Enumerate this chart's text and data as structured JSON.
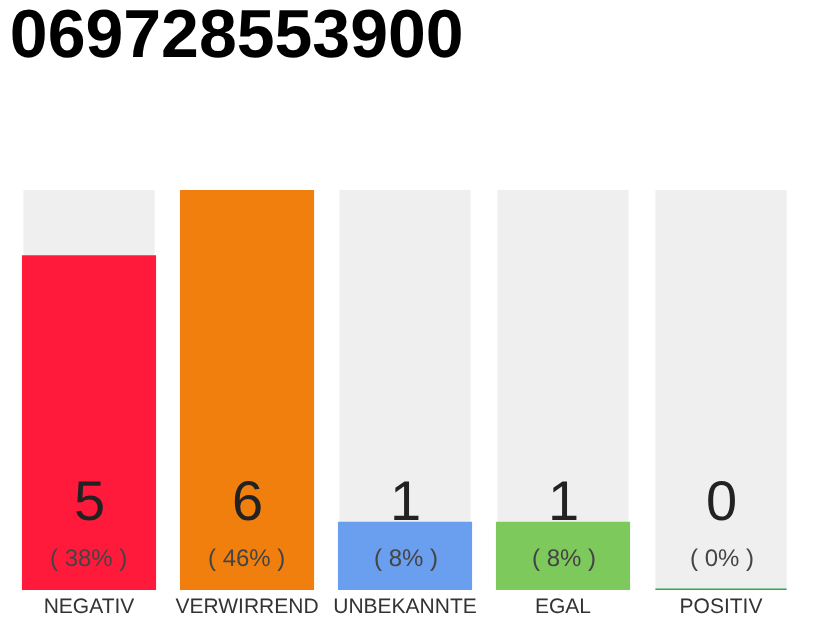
{
  "chart_data": {
    "type": "bar",
    "title": "069728553900",
    "categories": [
      "NEGATIV",
      "VERWIRREND",
      "UNBEKANNTE",
      "EGAL",
      "POSITIV"
    ],
    "values": [
      5,
      6,
      1,
      1,
      0
    ],
    "colors": [
      "#ff1a3c",
      "#f07f0e",
      "#6a9ff0",
      "#7dc95c",
      "#2eaa4a"
    ],
    "value_labels": [
      "5\n( 38% )",
      "6\n( 46% )",
      "1\n( 8% )",
      "1\n( 8% )",
      "0\n( 0% )"
    ],
    "grid": false,
    "legend": false
  }
}
